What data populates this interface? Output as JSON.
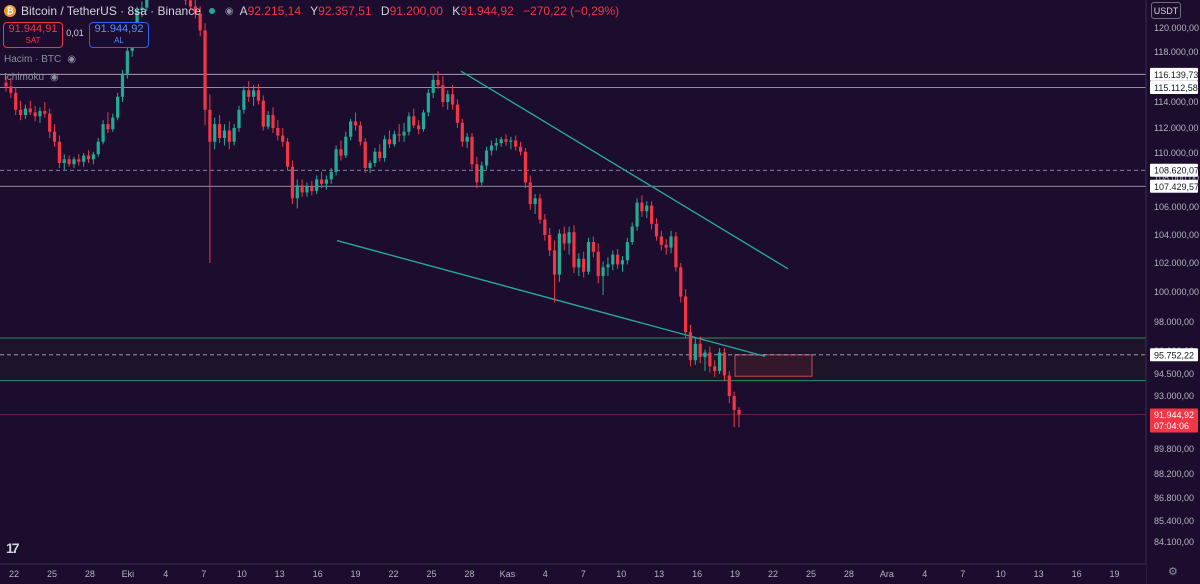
{
  "header": {
    "symbol": "Bitcoin / TetherUS · 8sa · Binance",
    "ohlc_labels": [
      "A",
      "Y",
      "D",
      "K"
    ],
    "ohlc_values": [
      "92.215,14",
      "92.357,51",
      "91.200,00",
      "91.944,92"
    ],
    "change": "−270,22 (−0,29%)"
  },
  "trade": {
    "sell_price": "91.944,91",
    "sell_label": "SAT",
    "spread": "0,01",
    "buy_price": "91.944,92",
    "buy_label": "AL"
  },
  "indicators": [
    "Hacim · BTC",
    "Ichimoku"
  ],
  "currency_button": "USDT",
  "colors": {
    "background": "#1c0d2e",
    "up": "#22ab94",
    "down": "#f23645",
    "trendline": "#26a69a",
    "level_line": "#d1d4dc",
    "zone_green": "#2a8f5c",
    "zone_red": "#c44a5e"
  },
  "icons": [
    "bitcoin-coin-icon",
    "eye-icon",
    "tradingview-logo-icon",
    "settings-gear-icon"
  ],
  "chart_data": {
    "type": "candlestick",
    "symbol": "BTCUSDT",
    "timeframe": "8sa",
    "y_axis_ticks": [
      "84.100,00",
      "85.400,00",
      "86.800,00",
      "88.200,00",
      "89.800,00",
      "91.400,00",
      "93.000,00",
      "94.500,00",
      "96.000,00",
      "98.000,00",
      "100.000,00",
      "102.000,00",
      "104.000,00",
      "106.000,00",
      "108.000,00",
      "110.000,00",
      "112.000,00",
      "114.000,00",
      "116.000,00",
      "118.000,00",
      "120.000,00"
    ],
    "y_tick_values": [
      84100,
      85400,
      86800,
      88200,
      89800,
      91400,
      93000,
      94500,
      96000,
      98000,
      100000,
      102000,
      104000,
      106000,
      108000,
      110000,
      112000,
      114000,
      116000,
      118000,
      120000
    ],
    "x_axis_ticks": [
      "22",
      "25",
      "28",
      "Eki",
      "4",
      "7",
      "10",
      "13",
      "16",
      "19",
      "22",
      "25",
      "28",
      "Kas",
      "4",
      "7",
      "10",
      "13",
      "16",
      "19",
      "22",
      "25",
      "28",
      "Ara",
      "4",
      "7",
      "10",
      "13",
      "16",
      "19"
    ],
    "price_labels": [
      {
        "value": 116139.73,
        "text": "116.139,73"
      },
      {
        "value": 115112.58,
        "text": "115.112,58"
      },
      {
        "value": 108620.07,
        "text": "108.620,07"
      },
      {
        "value": 107429.57,
        "text": "107.429,57"
      },
      {
        "value": 95752.22,
        "text": "95.752,22"
      }
    ],
    "current_price": {
      "value": 91944.92,
      "text": "91.944,92",
      "countdown": "07:04:06"
    },
    "horizontal_lines": [
      116139.73,
      115112.58,
      107429.57
    ],
    "dashed_lines": [
      108620.07,
      95752.22
    ],
    "zone": {
      "top": 96900,
      "bottom": 94050
    },
    "red_box": {
      "top": 95750,
      "bottom": 94350
    },
    "trendlines": [
      {
        "from": [
          "27 Eyl",
          116400
        ],
        "to": [
          "21 Kas",
          101600
        ]
      },
      {
        "from": [
          "16 Eyl",
          103600
        ],
        "to": [
          "15 Kas",
          95650
        ]
      }
    ],
    "candles": [
      [
        115500,
        116000,
        114800,
        115200
      ],
      [
        115200,
        115800,
        114300,
        114700
      ],
      [
        114700,
        115100,
        113000,
        113400
      ],
      [
        113400,
        114100,
        112600,
        113000
      ],
      [
        113000,
        113800,
        112700,
        113500
      ],
      [
        113500,
        114100,
        113000,
        113200
      ],
      [
        113200,
        113700,
        112500,
        112900
      ],
      [
        112900,
        113600,
        112400,
        113300
      ],
      [
        113300,
        114000,
        112800,
        113100
      ],
      [
        113100,
        113500,
        111200,
        111700
      ],
      [
        111700,
        112300,
        110500,
        110900
      ],
      [
        110900,
        111400,
        108800,
        109200
      ],
      [
        109200,
        109900,
        108600,
        109500
      ],
      [
        109500,
        109800,
        108900,
        109100
      ],
      [
        109100,
        109700,
        108800,
        109500
      ],
      [
        109500,
        109900,
        109000,
        109300
      ],
      [
        109300,
        110000,
        108900,
        109800
      ],
      [
        109800,
        110200,
        109200,
        109500
      ],
      [
        109500,
        110100,
        109100,
        109900
      ],
      [
        109900,
        111200,
        109700,
        110900
      ],
      [
        110900,
        112600,
        110700,
        112300
      ],
      [
        112300,
        113200,
        111600,
        111900
      ],
      [
        111900,
        113100,
        111700,
        112800
      ],
      [
        112800,
        114700,
        112600,
        114400
      ],
      [
        114400,
        116500,
        114000,
        116200
      ],
      [
        116200,
        118400,
        115800,
        118100
      ],
      [
        118100,
        120200,
        117600,
        119800
      ],
      [
        119800,
        121800,
        119300,
        121500
      ],
      [
        121500,
        122200,
        120900,
        121700
      ],
      [
        121700,
        123800,
        121400,
        123400
      ],
      [
        123400,
        124800,
        123000,
        124200
      ],
      [
        124200,
        124900,
        123100,
        123500
      ],
      [
        123500,
        124300,
        122800,
        123900
      ],
      [
        123900,
        124500,
        123200,
        123600
      ],
      [
        123600,
        124100,
        122700,
        123100
      ],
      [
        123100,
        123800,
        122400,
        123500
      ],
      [
        123500,
        124200,
        122900,
        123300
      ],
      [
        123300,
        123700,
        121900,
        122300
      ],
      [
        122300,
        123000,
        121500,
        121800
      ],
      [
        121800,
        122600,
        120800,
        121200
      ],
      [
        121200,
        121800,
        119300,
        119800
      ],
      [
        119800,
        120400,
        112200,
        113400
      ],
      [
        113400,
        114600,
        102000,
        110900
      ],
      [
        110900,
        112800,
        110300,
        112300
      ],
      [
        112300,
        113000,
        110800,
        111200
      ],
      [
        111200,
        112300,
        110600,
        111800
      ],
      [
        111800,
        112500,
        110300,
        110900
      ],
      [
        110900,
        112300,
        110600,
        112000
      ],
      [
        112000,
        113700,
        111700,
        113400
      ],
      [
        113400,
        115200,
        113100,
        114900
      ],
      [
        114900,
        115600,
        114000,
        114400
      ],
      [
        114400,
        115300,
        113700,
        114900
      ],
      [
        114900,
        115400,
        113800,
        114100
      ],
      [
        114100,
        114500,
        111800,
        112100
      ],
      [
        112100,
        113300,
        111900,
        113000
      ],
      [
        113000,
        113600,
        111600,
        112000
      ],
      [
        112000,
        112600,
        111000,
        111400
      ],
      [
        111400,
        112000,
        110500,
        110900
      ],
      [
        110900,
        111200,
        108600,
        108900
      ],
      [
        108900,
        109400,
        106200,
        106600
      ],
      [
        106600,
        107900,
        105900,
        107500
      ],
      [
        107500,
        107900,
        106700,
        107000
      ],
      [
        107000,
        107700,
        106700,
        107400
      ],
      [
        107400,
        107800,
        106800,
        107100
      ],
      [
        107100,
        108200,
        106900,
        107900
      ],
      [
        107900,
        108500,
        107300,
        107600
      ],
      [
        107600,
        108200,
        107200,
        107900
      ],
      [
        107900,
        108800,
        107600,
        108500
      ],
      [
        108500,
        110600,
        108200,
        110300
      ],
      [
        110300,
        111000,
        109400,
        109800
      ],
      [
        109800,
        111700,
        109600,
        111300
      ],
      [
        111300,
        112700,
        111000,
        112500
      ],
      [
        112500,
        113200,
        111800,
        112200
      ],
      [
        112200,
        112500,
        110600,
        110900
      ],
      [
        110900,
        111200,
        108400,
        108800
      ],
      [
        108800,
        109400,
        108400,
        109200
      ],
      [
        109200,
        110400,
        108900,
        110100
      ],
      [
        110100,
        110700,
        109300,
        109600
      ],
      [
        109600,
        111400,
        109300,
        111100
      ],
      [
        111100,
        111800,
        110400,
        110700
      ],
      [
        110700,
        111800,
        110500,
        111500
      ],
      [
        111500,
        112300,
        110900,
        111400
      ],
      [
        111400,
        112400,
        110900,
        111700
      ],
      [
        111700,
        113200,
        111400,
        112900
      ],
      [
        112900,
        113500,
        112000,
        112200
      ],
      [
        112200,
        112600,
        111500,
        111900
      ],
      [
        111900,
        113400,
        111700,
        113200
      ],
      [
        113200,
        115000,
        112900,
        114700
      ],
      [
        114700,
        116200,
        114300,
        115700
      ],
      [
        115700,
        116400,
        115000,
        115300
      ],
      [
        115300,
        116000,
        113600,
        114000
      ],
      [
        114000,
        114900,
        113400,
        114600
      ],
      [
        114600,
        115300,
        113400,
        113800
      ],
      [
        113800,
        114200,
        112000,
        112400
      ],
      [
        112400,
        112700,
        110500,
        110900
      ],
      [
        110900,
        111600,
        110400,
        111300
      ],
      [
        111300,
        111600,
        108700,
        109100
      ],
      [
        109100,
        109700,
        107300,
        107700
      ],
      [
        107700,
        109300,
        107500,
        109000
      ],
      [
        109000,
        110500,
        108700,
        110200
      ],
      [
        110200,
        111000,
        109800,
        110600
      ],
      [
        110600,
        111200,
        110200,
        110800
      ],
      [
        110800,
        111300,
        110500,
        111100
      ],
      [
        111100,
        111500,
        110600,
        110900
      ],
      [
        110900,
        111300,
        110300,
        111000
      ],
      [
        111000,
        111400,
        110200,
        110500
      ],
      [
        110500,
        110900,
        109800,
        110100
      ],
      [
        110100,
        110400,
        107300,
        107700
      ],
      [
        107700,
        108200,
        105800,
        106200
      ],
      [
        106200,
        106900,
        105500,
        106600
      ],
      [
        106600,
        106900,
        104800,
        105100
      ],
      [
        105100,
        105500,
        103600,
        104000
      ],
      [
        104000,
        104500,
        102500,
        102900
      ],
      [
        102900,
        103600,
        99300,
        101200
      ],
      [
        101200,
        104400,
        100700,
        104100
      ],
      [
        104100,
        104600,
        102900,
        103400
      ],
      [
        103400,
        104600,
        102600,
        104200
      ],
      [
        104200,
        104700,
        101300,
        101700
      ],
      [
        101700,
        102700,
        101100,
        102300
      ],
      [
        102300,
        102800,
        101000,
        101400
      ],
      [
        101400,
        103800,
        101200,
        103500
      ],
      [
        103500,
        103900,
        102400,
        102800
      ],
      [
        102800,
        103400,
        100600,
        101100
      ],
      [
        101100,
        102100,
        99800,
        101700
      ],
      [
        101700,
        102400,
        101100,
        101900
      ],
      [
        101900,
        102900,
        101500,
        102600
      ],
      [
        102600,
        103000,
        101600,
        101900
      ],
      [
        101900,
        102500,
        101400,
        102200
      ],
      [
        102200,
        103800,
        101900,
        103500
      ],
      [
        103500,
        104900,
        103300,
        104600
      ],
      [
        104600,
        106600,
        104300,
        106300
      ],
      [
        106300,
        106800,
        105300,
        105700
      ],
      [
        105700,
        106400,
        105200,
        106100
      ],
      [
        106100,
        106400,
        104400,
        104800
      ],
      [
        104800,
        105200,
        103600,
        103900
      ],
      [
        103900,
        104300,
        102900,
        103300
      ],
      [
        103300,
        103700,
        102600,
        103100
      ],
      [
        103100,
        104300,
        102700,
        103900
      ],
      [
        103900,
        104200,
        101400,
        101700
      ],
      [
        101700,
        102000,
        99300,
        99700
      ],
      [
        99700,
        100200,
        96900,
        97300
      ],
      [
        97300,
        97800,
        95000,
        95400
      ],
      [
        95400,
        96900,
        95100,
        96500
      ],
      [
        96500,
        97000,
        95200,
        95600
      ],
      [
        95600,
        96100,
        94700,
        95900
      ],
      [
        95900,
        96300,
        94600,
        95000
      ],
      [
        95000,
        95400,
        94300,
        94700
      ],
      [
        94700,
        96200,
        94500,
        95900
      ],
      [
        95900,
        96200,
        94000,
        94400
      ],
      [
        94400,
        94700,
        92600,
        93000
      ],
      [
        93000,
        93300,
        91200,
        92200
      ],
      [
        92200,
        92357,
        91200,
        91945
      ]
    ]
  }
}
